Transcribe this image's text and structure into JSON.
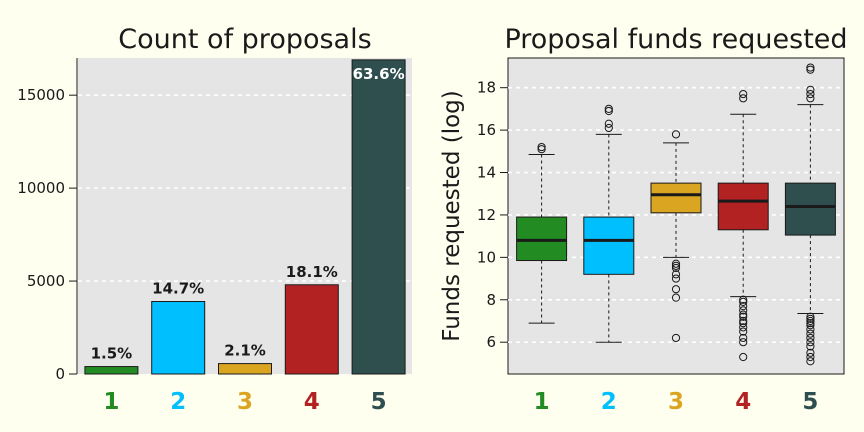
{
  "chart_data": [
    {
      "type": "bar",
      "title": "Count of proposals",
      "xlabel": "",
      "ylabel": "",
      "categories": [
        "1",
        "2",
        "3",
        "4",
        "5"
      ],
      "values": [
        400,
        3900,
        560,
        4800,
        16900
      ],
      "data_labels": [
        "1.5%",
        "14.7%",
        "2.1%",
        "18.1%",
        "63.6%"
      ],
      "colors": [
        "#228b22",
        "#00bfff",
        "#daa520",
        "#b22222",
        "#2f4f4f"
      ],
      "yticks": [
        0,
        5000,
        10000,
        15000
      ],
      "yticklabels": [
        "0",
        "5000",
        "10000",
        "15000"
      ],
      "ylim": [
        0,
        17000
      ],
      "grid": true,
      "grid_axis": "y",
      "grid_style": "dashed white",
      "background": "#e5e5e5"
    },
    {
      "type": "box",
      "title": "Proposal funds requested",
      "xlabel": "",
      "ylabel": "Funds requested (log)",
      "categories": [
        "1",
        "2",
        "3",
        "4",
        "5"
      ],
      "colors": [
        "#228b22",
        "#00bfff",
        "#daa520",
        "#b22222",
        "#2f4f4f"
      ],
      "boxes": [
        {
          "whisker_low": 6.9,
          "q1": 9.85,
          "median": 10.8,
          "q3": 11.9,
          "whisker_high": 14.85,
          "outliers": [
            15.1,
            15.2
          ]
        },
        {
          "whisker_low": 6.0,
          "q1": 9.2,
          "median": 10.8,
          "q3": 11.9,
          "whisker_high": 15.8,
          "outliers": [
            16.1,
            16.3,
            16.9,
            17.0
          ]
        },
        {
          "whisker_low": 10.0,
          "q1": 12.1,
          "median": 12.95,
          "q3": 13.5,
          "whisker_high": 15.4,
          "outliers": [
            6.2,
            8.1,
            8.5,
            9.0,
            9.2,
            9.5,
            9.6,
            9.7,
            15.8
          ]
        },
        {
          "whisker_low": 8.15,
          "q1": 11.3,
          "median": 12.65,
          "q3": 13.5,
          "whisker_high": 16.75,
          "outliers": [
            5.3,
            6.0,
            6.2,
            6.5,
            6.7,
            6.9,
            7.0,
            7.2,
            7.3,
            7.5,
            7.7,
            7.9,
            8.0,
            17.5,
            17.7
          ]
        },
        {
          "whisker_low": 7.35,
          "q1": 11.05,
          "median": 12.4,
          "q3": 13.5,
          "whisker_high": 17.2,
          "outliers": [
            5.1,
            5.3,
            5.5,
            5.8,
            6.0,
            6.2,
            6.4,
            6.6,
            6.8,
            6.9,
            7.0,
            7.1,
            7.2,
            17.5,
            17.7,
            17.9,
            18.85,
            18.95
          ]
        }
      ],
      "yticks": [
        6,
        8,
        10,
        12,
        14,
        16,
        18
      ],
      "yticklabels": [
        "6",
        "8",
        "10",
        "12",
        "14",
        "16",
        "18"
      ],
      "ylim": [
        4.5,
        19.4
      ],
      "grid": true,
      "grid_axis": "y",
      "grid_style": "dashed white",
      "background": "#e5e5e5"
    }
  ]
}
